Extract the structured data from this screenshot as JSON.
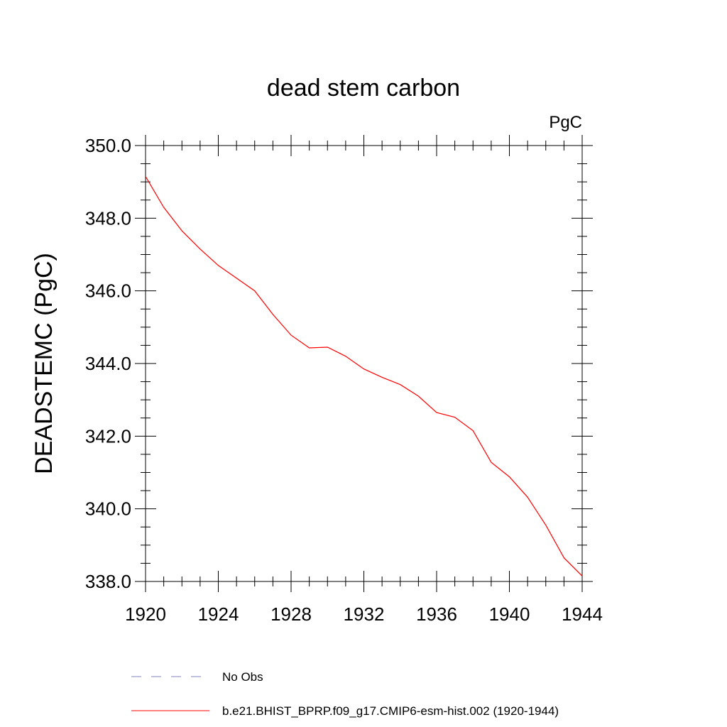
{
  "chart_data": {
    "type": "line",
    "title": "dead stem carbon",
    "units_label": "PgC",
    "ylabel": "DEADSTEMC  (PgC)",
    "xlabel": "",
    "xlim": [
      1920,
      1944
    ],
    "ylim": [
      338.0,
      350.0
    ],
    "x_ticks": [
      1920,
      1924,
      1928,
      1932,
      1936,
      1940,
      1944
    ],
    "y_ticks": [
      "338.0",
      "340.0",
      "342.0",
      "344.0",
      "346.0",
      "348.0",
      "350.0"
    ],
    "grid": false,
    "legend_position": "bottom",
    "series": [
      {
        "name": "No Obs",
        "color": "#8080c0",
        "dash": "dashed",
        "x": [],
        "y": []
      },
      {
        "name": "b.e21.BHIST_BPRP.f09_g17.CMIP6-esm-hist.002 (1920-1944)",
        "color": "#ff0000",
        "dash": "solid",
        "x": [
          1920,
          1921,
          1922,
          1923,
          1924,
          1925,
          1926,
          1927,
          1928,
          1929,
          1930,
          1931,
          1932,
          1933,
          1934,
          1935,
          1936,
          1937,
          1938,
          1939,
          1940,
          1941,
          1942,
          1943,
          1944
        ],
        "y": [
          349.15,
          348.3,
          347.65,
          347.15,
          346.7,
          346.35,
          346.0,
          345.35,
          344.78,
          344.43,
          344.45,
          344.2,
          343.85,
          343.62,
          343.42,
          343.1,
          342.65,
          342.52,
          342.15,
          341.28,
          340.88,
          340.32,
          339.55,
          338.65,
          338.15
        ]
      }
    ]
  }
}
